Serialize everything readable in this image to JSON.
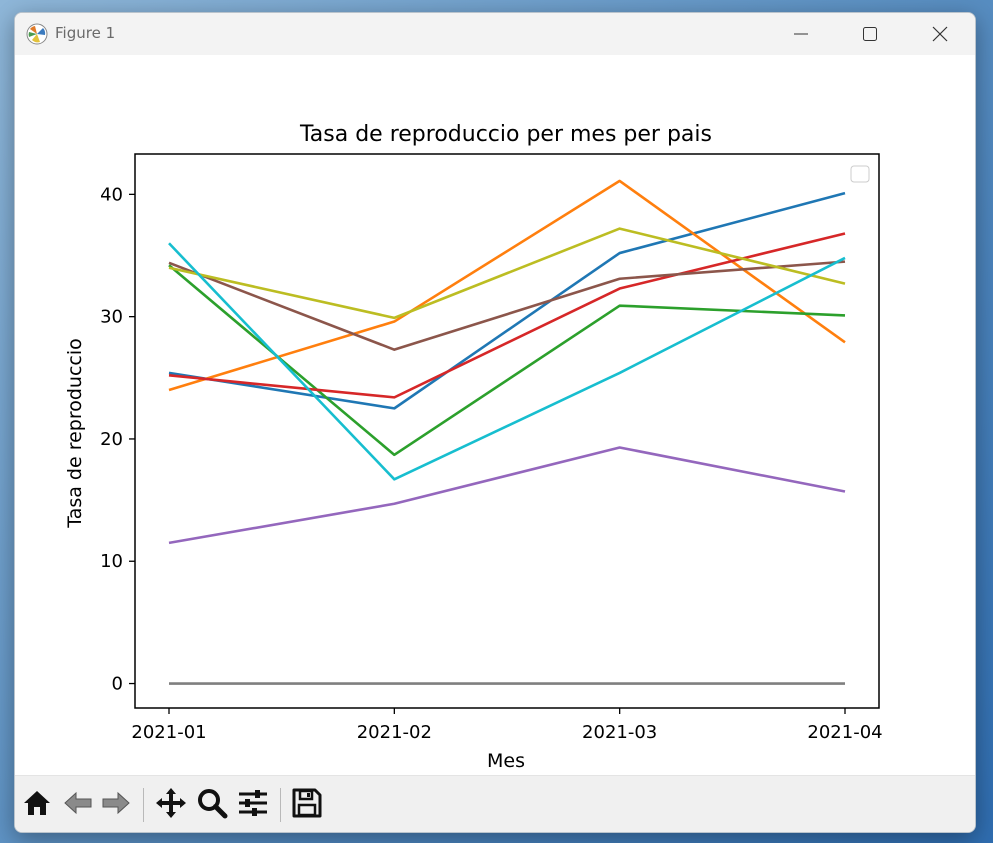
{
  "window": {
    "title": "Figure 1",
    "icons": {
      "app": "matplotlib-icon",
      "minimize": "minimize-icon",
      "maximize": "maximize-icon",
      "close": "close-icon"
    }
  },
  "toolbar": {
    "buttons": [
      {
        "name": "home-icon",
        "label": "Home"
      },
      {
        "name": "back-arrow-icon",
        "label": "Back"
      },
      {
        "name": "forward-arrow-icon",
        "label": "Forward"
      },
      {
        "name": "pan-icon",
        "label": "Pan"
      },
      {
        "name": "zoom-icon",
        "label": "Zoom"
      },
      {
        "name": "configure-subplots-icon",
        "label": "Configure subplots"
      },
      {
        "name": "save-icon",
        "label": "Save"
      }
    ]
  },
  "chart_data": {
    "type": "line",
    "title": "Tasa de reproduccio per mes per pais",
    "xlabel": "Mes",
    "ylabel": "Tasa de reproduccio",
    "categories": [
      "2021-01",
      "2021-02",
      "2021-03",
      "2021-04"
    ],
    "ylim": [
      -2,
      43.3
    ],
    "yticks": [
      0,
      10,
      20,
      30,
      40
    ],
    "grid": false,
    "legend": "top-right (empty)",
    "series": [
      {
        "color": "#1f77b4",
        "values": [
          25.4,
          22.5,
          35.2,
          40.1
        ]
      },
      {
        "color": "#ff7f0e",
        "values": [
          24.0,
          29.6,
          41.1,
          27.9
        ]
      },
      {
        "color": "#2ca02c",
        "values": [
          34.2,
          18.7,
          30.9,
          30.1
        ]
      },
      {
        "color": "#d62728",
        "values": [
          25.2,
          23.4,
          32.3,
          36.8
        ]
      },
      {
        "color": "#9467bd",
        "values": [
          11.5,
          14.7,
          19.3,
          15.7
        ]
      },
      {
        "color": "#8c564b",
        "values": [
          34.4,
          27.3,
          33.1,
          34.5
        ]
      },
      {
        "color": "#7f7f7f",
        "values": [
          0,
          0,
          0,
          0
        ]
      },
      {
        "color": "#bcbd22",
        "values": [
          34.0,
          29.9,
          37.2,
          32.7
        ]
      },
      {
        "color": "#17becf",
        "values": [
          36.0,
          16.7,
          25.4,
          34.8
        ]
      }
    ]
  }
}
